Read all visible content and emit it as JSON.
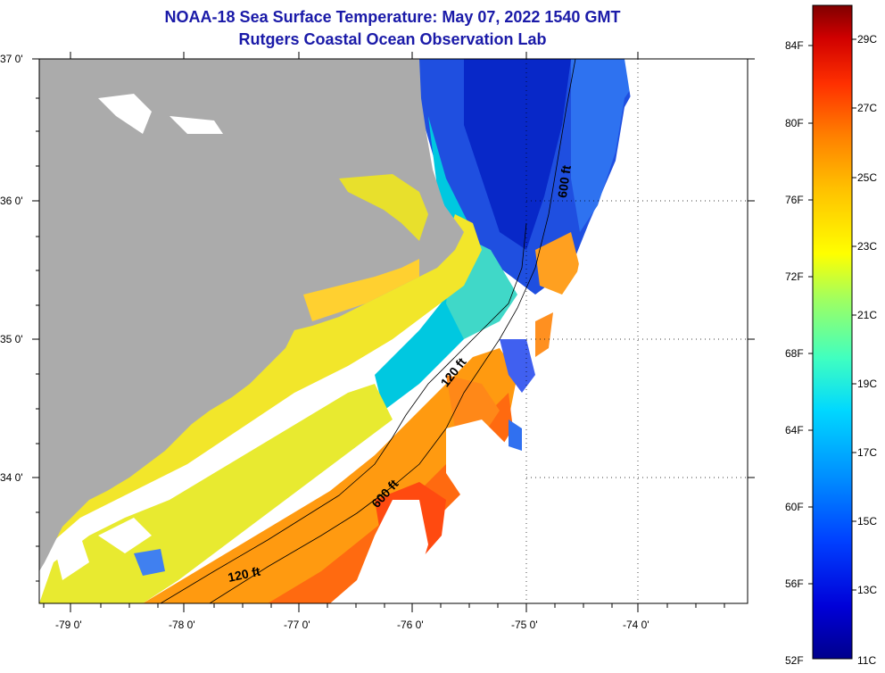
{
  "title": {
    "line1": "NOAA-18 Sea Surface Temperature:  May 07, 2022 1540 GMT",
    "line2": "Rutgers Coastal Ocean Observation Lab"
  },
  "axes": {
    "lat_labels": [
      "37 0'",
      "36 0'",
      "35 0'",
      "34 0'"
    ],
    "lon_labels": [
      "-79 0'",
      "-78 0'",
      "-77 0'",
      "-76 0'",
      "-75 0'",
      "-74 0'"
    ]
  },
  "contours": {
    "c120_top": "120 ft",
    "c600_top": "600 ft",
    "c600_bottom": "600 ft",
    "c120_bottom": "120 ft"
  },
  "colorbar": {
    "f_labels": [
      "84F",
      "80F",
      "76F",
      "72F",
      "68F",
      "64F",
      "60F",
      "56F",
      "52F"
    ],
    "c_labels": [
      "29C",
      "27C",
      "25C",
      "23C",
      "21C",
      "19C",
      "17C",
      "15C",
      "13C",
      "11C"
    ],
    "colors": [
      "#800000",
      "#d40000",
      "#ff4c00",
      "#ff9600",
      "#ffd800",
      "#e6ff19",
      "#9cff63",
      "#4fffaf",
      "#00e4ff",
      "#009cff",
      "#0050ff",
      "#0008ff",
      "#00009c"
    ]
  },
  "colors": {
    "land": "#ababab",
    "cloud": "#ffffff",
    "grid": "#000000"
  }
}
